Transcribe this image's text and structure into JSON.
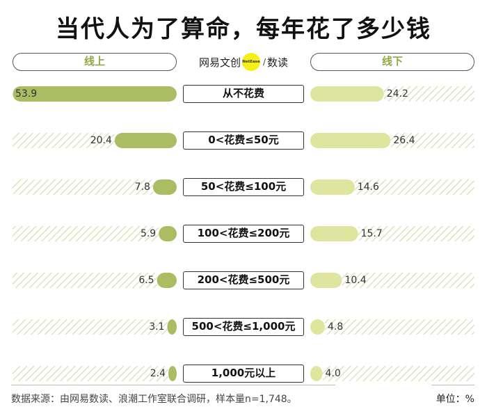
{
  "title": "当代人为了算命，每年花了多少钱",
  "brand": {
    "name": "网易文创",
    "dot_text": "NetEase",
    "sub": "数读"
  },
  "footer": {
    "source": "数据来源：由网易数读、浪潮工作室联合调研，样本量n=1,748。",
    "unit": "单位：%"
  },
  "colors": {
    "online": "#aabd63",
    "offline": "#dde59f",
    "hatch": "#d9dfb4"
  },
  "chart_data": {
    "type": "bar",
    "categories": [
      "从不花费",
      "0<花费≤50元",
      "50<花费≤100元",
      "100<花费≤200元",
      "200<花费≤500元",
      "500<花费≤1,000元",
      "1,000元以上"
    ],
    "series": [
      {
        "name": "线上",
        "values": [
          53.9,
          20.4,
          7.8,
          5.9,
          6.5,
          3.1,
          2.4
        ],
        "labels": [
          "53.9",
          "20.4",
          "7.8",
          "5.9",
          "6.5",
          "3.1",
          "2.4"
        ]
      },
      {
        "name": "线下",
        "values": [
          24.2,
          26.4,
          14.6,
          15.7,
          10.4,
          4.8,
          4.0
        ],
        "labels": [
          "24.2",
          "26.4",
          "14.6",
          "15.7",
          "10.4",
          "4.8",
          "4.0"
        ]
      }
    ],
    "xlim": [
      0,
      54
    ]
  }
}
